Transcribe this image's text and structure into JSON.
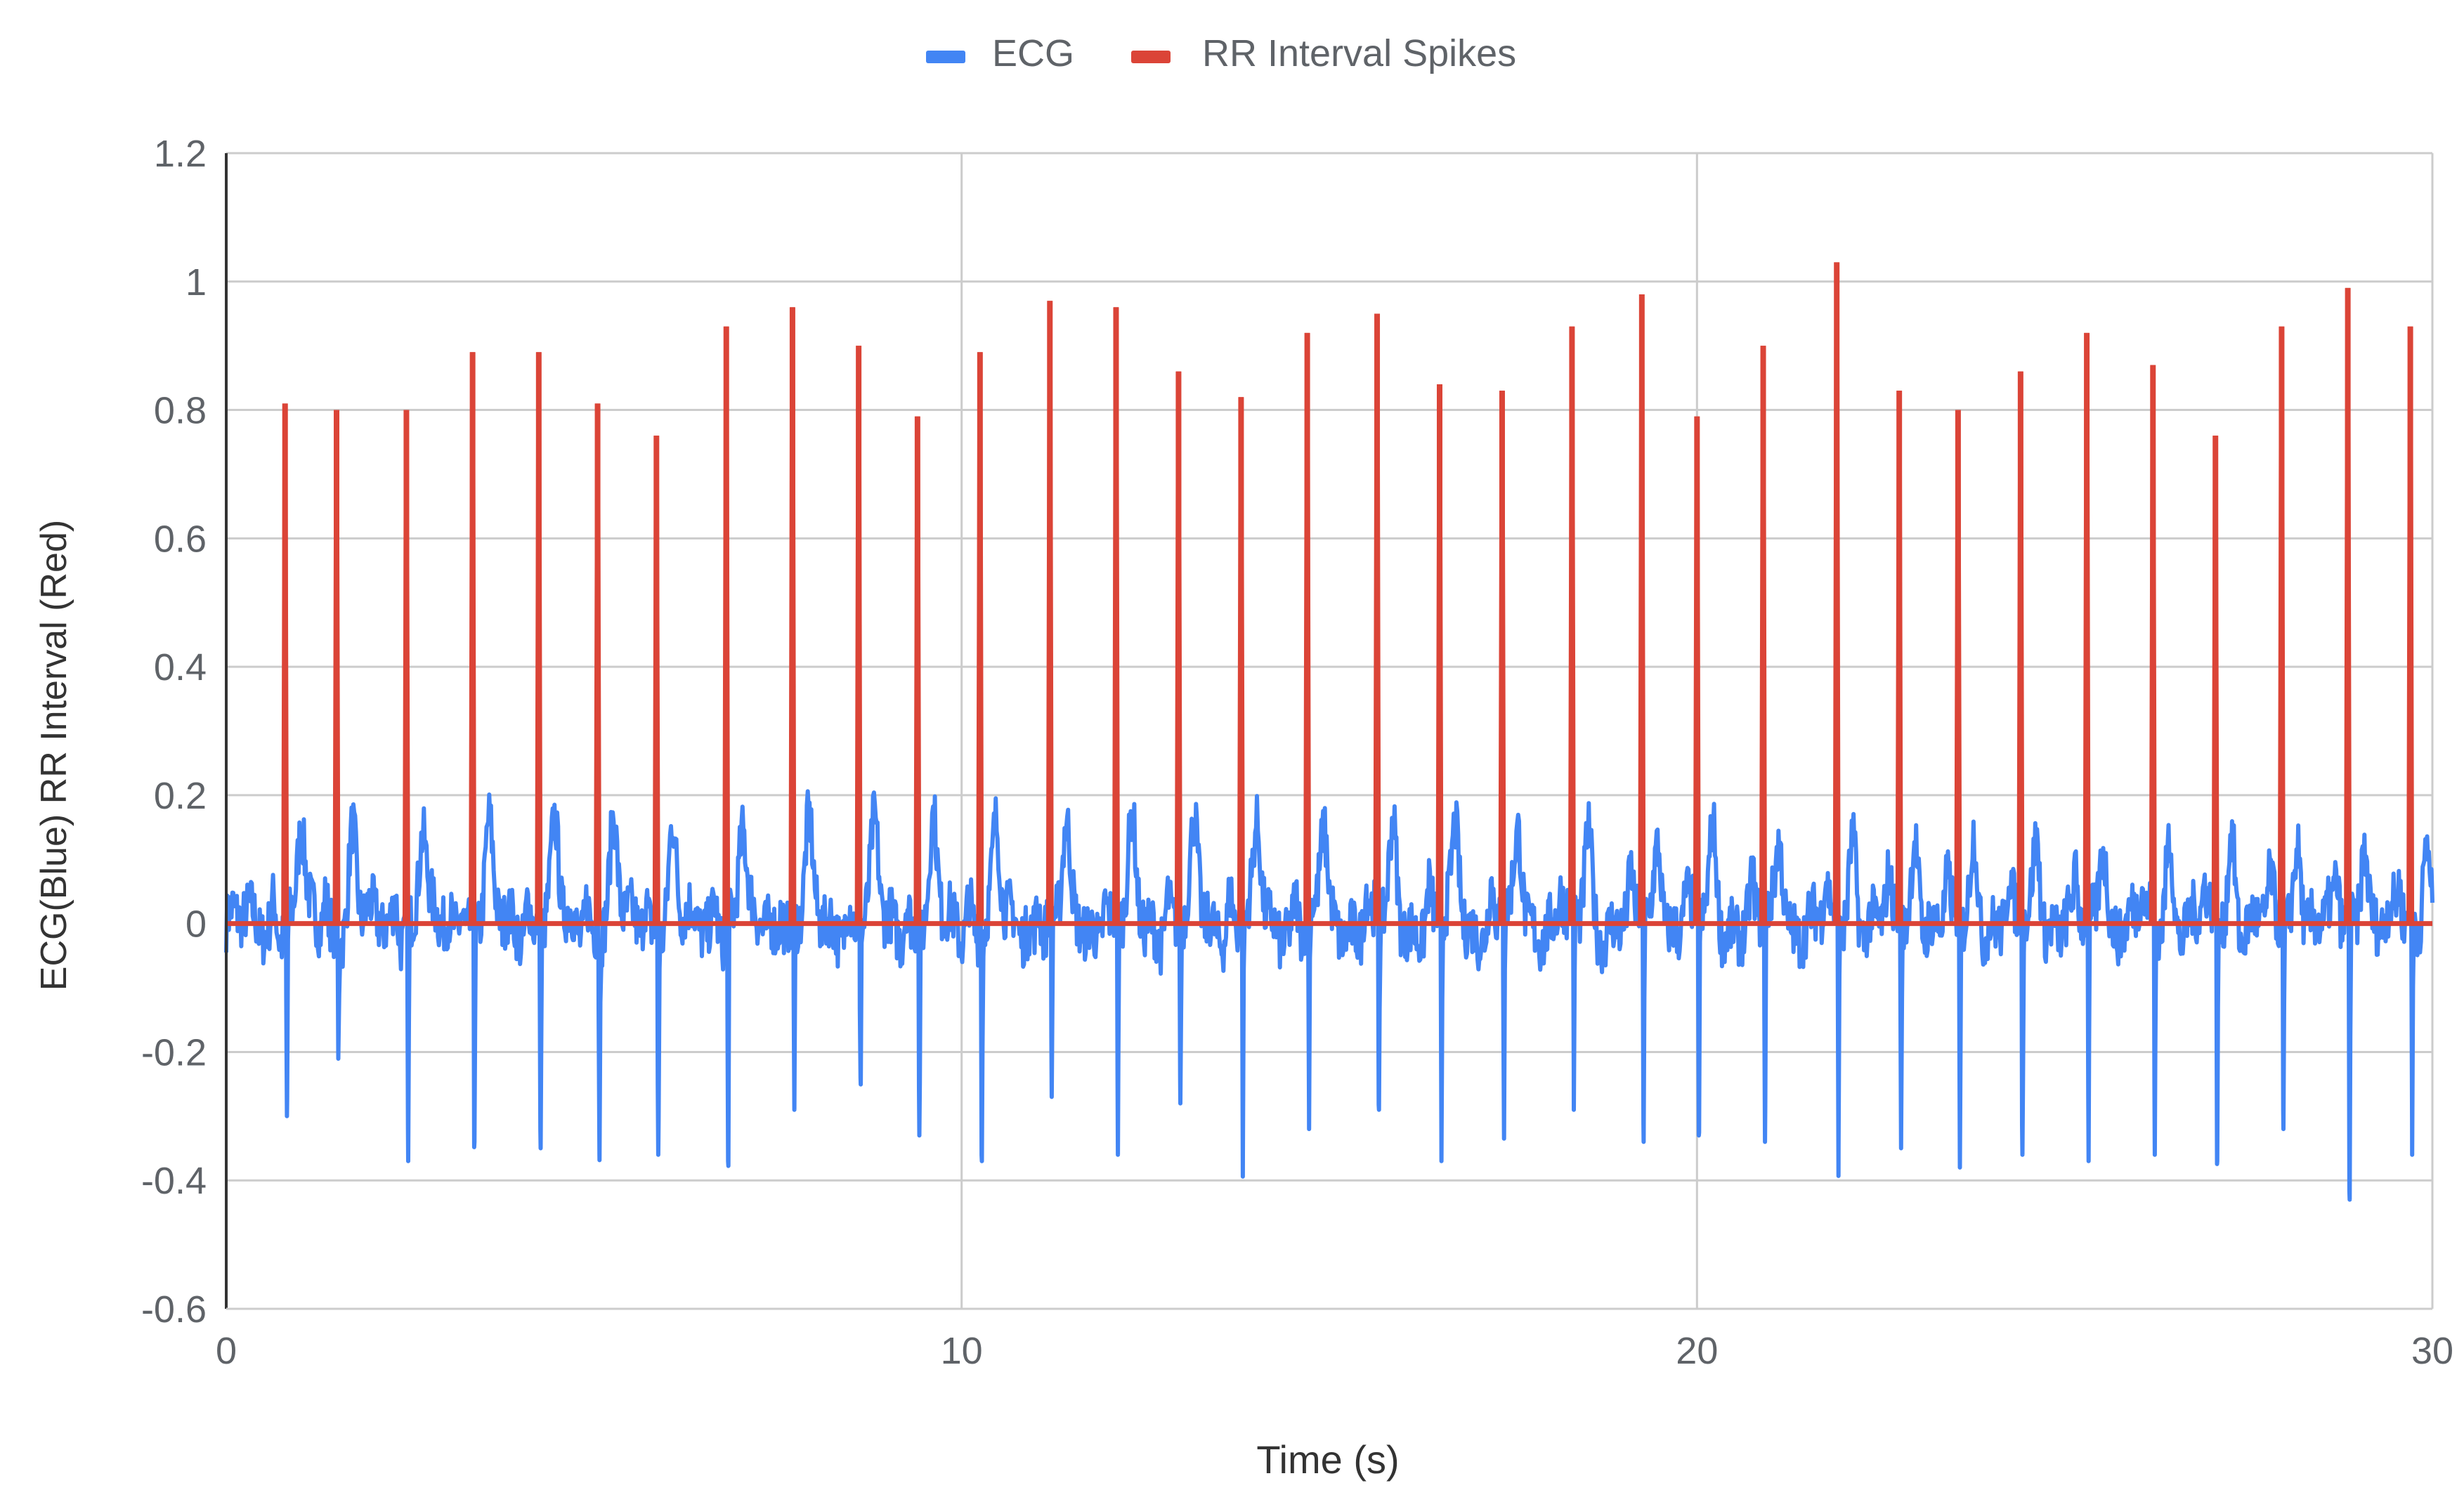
{
  "chart_data": {
    "type": "line",
    "title": "",
    "xlabel": "Time (s)",
    "ylabel": "ECG(Blue) RR Interval (Red)",
    "xlim": [
      0,
      30
    ],
    "ylim": [
      -0.6,
      1.2
    ],
    "x_ticks": [
      "0",
      "10",
      "20",
      "30"
    ],
    "y_ticks": [
      "1.2",
      "1",
      "0.8",
      "0.6",
      "0.4",
      "0.2",
      "0",
      "-0.2",
      "-0.4",
      "-0.6"
    ],
    "grid": true,
    "legend_position": "top",
    "series": [
      {
        "name": "ECG",
        "color": "#4285f4",
        "kind": "ecg"
      },
      {
        "name": "RR Interval Spikes",
        "color": "#db4437",
        "kind": "spikes"
      }
    ],
    "beats": [
      {
        "t": 0.8,
        "rr": 0.81,
        "r": 0.44,
        "s": -0.3
      },
      {
        "t": 1.5,
        "rr": 0.8,
        "r": 0.62,
        "s": -0.2
      },
      {
        "t": 2.45,
        "rr": 0.8,
        "r": 0.46,
        "s": -0.37
      },
      {
        "t": 3.35,
        "rr": 0.89,
        "r": 0.52,
        "s": -0.34
      },
      {
        "t": 4.25,
        "rr": 0.89,
        "r": 0.37,
        "s": -0.35
      },
      {
        "t": 5.05,
        "rr": 0.81,
        "r": 0.38,
        "s": -0.36
      },
      {
        "t": 5.85,
        "rr": 0.76,
        "r": 0.4,
        "s": -0.36
      },
      {
        "t": 6.8,
        "rr": 0.93,
        "r": 0.47,
        "s": -0.37
      },
      {
        "t": 7.7,
        "rr": 0.96,
        "r": 0.46,
        "s": -0.29
      },
      {
        "t": 8.6,
        "rr": 0.9,
        "r": 0.48,
        "s": -0.24
      },
      {
        "t": 9.4,
        "rr": 0.79,
        "r": 0.5,
        "s": -0.33
      },
      {
        "t": 10.25,
        "rr": 0.89,
        "r": 0.4,
        "s": -0.37
      },
      {
        "t": 11.2,
        "rr": 0.97,
        "r": 0.63,
        "s": -0.27
      },
      {
        "t": 12.1,
        "rr": 0.96,
        "r": 0.54,
        "s": -0.36
      },
      {
        "t": 12.95,
        "rr": 0.86,
        "r": 0.48,
        "s": -0.28
      },
      {
        "t": 13.8,
        "rr": 0.82,
        "r": 0.48,
        "s": -0.36
      },
      {
        "t": 14.7,
        "rr": 0.92,
        "r": 0.48,
        "s": -0.32
      },
      {
        "t": 15.65,
        "rr": 0.95,
        "r": 0.43,
        "s": -0.29
      },
      {
        "t": 16.5,
        "rr": 0.84,
        "r": 0.6,
        "s": -0.37
      },
      {
        "t": 17.35,
        "rr": 0.83,
        "r": 0.52,
        "s": -0.32
      },
      {
        "t": 18.3,
        "rr": 0.93,
        "r": 0.52,
        "s": -0.29
      },
      {
        "t": 19.25,
        "rr": 0.98,
        "r": 0.36,
        "s": -0.34
      },
      {
        "t": 20.0,
        "rr": 0.79,
        "r": 0.54,
        "s": -0.33
      },
      {
        "t": 20.9,
        "rr": 0.9,
        "r": 0.38,
        "s": -0.34
      },
      {
        "t": 21.9,
        "rr": 1.03,
        "r": 0.5,
        "s": -0.35
      },
      {
        "t": 22.75,
        "rr": 0.83,
        "r": 0.58,
        "s": -0.35
      },
      {
        "t": 23.55,
        "rr": 0.8,
        "r": 0.45,
        "s": -0.38
      },
      {
        "t": 24.4,
        "rr": 0.86,
        "r": 0.5,
        "s": -0.36
      },
      {
        "t": 25.3,
        "rr": 0.92,
        "r": 0.53,
        "s": -0.37
      },
      {
        "t": 26.2,
        "rr": 0.87,
        "r": 0.5,
        "s": -0.36
      },
      {
        "t": 27.05,
        "rr": 0.76,
        "r": 0.46,
        "s": -0.37
      },
      {
        "t": 27.95,
        "rr": 0.93,
        "r": 0.51,
        "s": -0.32
      },
      {
        "t": 28.85,
        "rr": 0.99,
        "r": 0.5,
        "s": -0.43
      },
      {
        "t": 29.7,
        "rr": 0.93,
        "r": 0.57,
        "s": -0.36
      }
    ]
  }
}
